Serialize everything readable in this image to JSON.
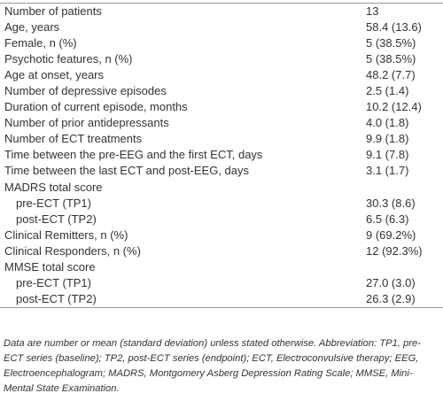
{
  "table": {
    "rows": [
      {
        "label": "Number of patients",
        "value": "13"
      },
      {
        "label": "Age, years",
        "value": "58.4 (13.6)"
      },
      {
        "label": "Female, n (%)",
        "value": "5 (38.5%)"
      },
      {
        "label": "Psychotic features, n (%)",
        "value": "5 (38.5%)"
      },
      {
        "label": "Age at onset, years",
        "value": "48.2 (7.7)"
      },
      {
        "label": "Number of depressive episodes",
        "value": "2.5 (1.4)"
      },
      {
        "label": "Duration of current episode, months",
        "value": "10.2 (12.4)"
      },
      {
        "label": "Number of prior antidepressants",
        "value": "4.0 (1.8)"
      },
      {
        "label": "Number of ECT treatments",
        "value": "9.9 (1.8)"
      },
      {
        "label": "Time between the pre-EEG and the first ECT, days",
        "value": "9.1 (7.8)"
      },
      {
        "label": "Time between the last ECT and post-EEG, days",
        "value": "3.1 (1.7)"
      },
      {
        "label": "MADRS total score",
        "rows": [
          {
            "label": "pre-ECT (TP1)",
            "value": "30.3 (8.6)"
          },
          {
            "label": "post-ECT (TP2)",
            "value": "6.5 (6.3)"
          }
        ]
      },
      {
        "label": "Clinical Remitters, n (%)",
        "value": "9 (69.2%)"
      },
      {
        "label": "Clinical Responders, n (%)",
        "value": "12 (92.3%)"
      },
      {
        "label": "MMSE total score",
        "rows": [
          {
            "label": "pre-ECT (TP1)",
            "value": "27.0 (3.0)"
          },
          {
            "label": "post-ECT (TP2)",
            "value": "26.3 (2.9)"
          }
        ]
      }
    ],
    "footnote": "Data are number or mean (standard deviation) unless stated otherwise. Abbreviation: TP1, pre-ECT series (baseline); TP2, post-ECT series (endpoint); ECT, Electroconvulsive therapy; EEG, Electroencephalogram; MADRS, Montgomery Asberg Depression Rating Scale; MMSE, Mini-Mental State Examination."
  }
}
